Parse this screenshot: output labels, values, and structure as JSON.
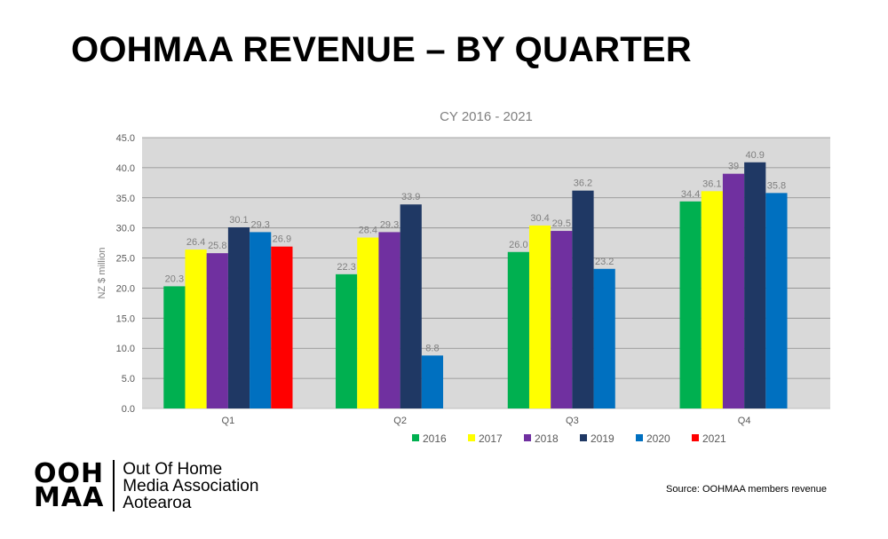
{
  "slide": {
    "title": "OOHMAA REVENUE – BY QUARTER",
    "source": "Source: OOHMAA members revenue"
  },
  "logo": {
    "mark_line1": "OOH",
    "mark_line2": "MAA",
    "text_line1": "Out Of Home",
    "text_line2": "Media Association",
    "text_line3": "Aotearoa"
  },
  "chart_data": {
    "type": "bar",
    "title": "CY 2016 - 2021",
    "ylabel": "NZ $ million",
    "xlabel": "",
    "ylim": [
      0,
      45
    ],
    "y_ticks": [
      "0.0",
      "5.0",
      "10.0",
      "15.0",
      "20.0",
      "25.0",
      "30.0",
      "35.0",
      "40.0",
      "45.0"
    ],
    "grid": true,
    "legend_position": "bottom",
    "categories": [
      "Q1",
      "Q2",
      "Q3",
      "Q4"
    ],
    "series": [
      {
        "name": "2016",
        "color": "#00b050",
        "values": [
          20.3,
          22.3,
          26.0,
          34.4
        ],
        "labels": [
          "20.3",
          "22.3",
          "26.0",
          "34.4"
        ]
      },
      {
        "name": "2017",
        "color": "#ffff00",
        "values": [
          26.4,
          28.4,
          30.4,
          36.1
        ],
        "labels": [
          "26.4",
          "28.4",
          "30.4",
          "36.1"
        ]
      },
      {
        "name": "2018",
        "color": "#7030a0",
        "values": [
          25.8,
          29.3,
          29.5,
          39
        ],
        "labels": [
          "25.8",
          "29.3",
          "29.5",
          "39"
        ]
      },
      {
        "name": "2019",
        "color": "#1f3864",
        "values": [
          30.1,
          33.9,
          36.2,
          40.9
        ],
        "labels": [
          "30.1",
          "33.9",
          "36.2",
          "40.9"
        ]
      },
      {
        "name": "2020",
        "color": "#0070c0",
        "values": [
          29.3,
          8.8,
          23.2,
          35.8
        ],
        "labels": [
          "29.3",
          "8.8",
          "23.2",
          "35.8"
        ]
      },
      {
        "name": "2021",
        "color": "#ff0000",
        "values": [
          26.9,
          null,
          null,
          null
        ],
        "labels": [
          "26.9",
          null,
          null,
          null
        ]
      }
    ]
  }
}
